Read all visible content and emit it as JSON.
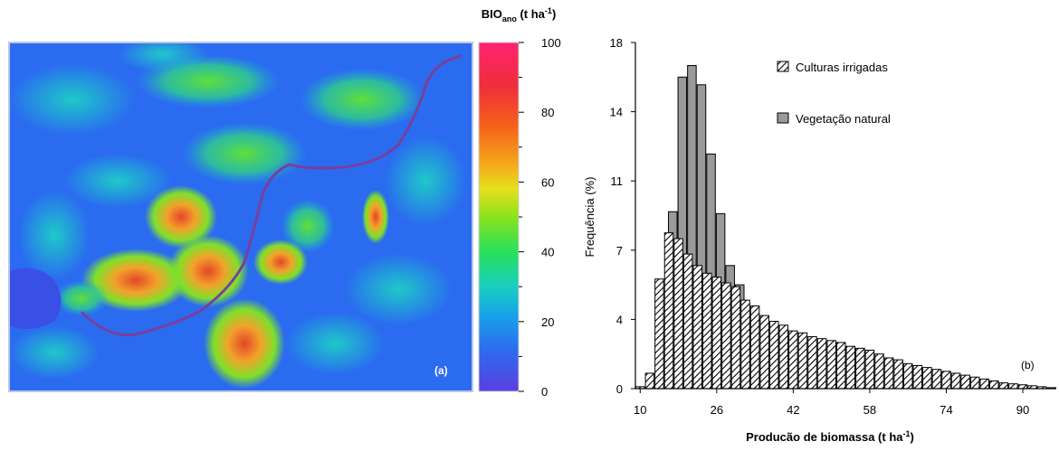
{
  "map_panel": {
    "panel_label": "(a)",
    "colorbar": {
      "title_main": "BIO",
      "title_sub": "ano",
      "title_units": " (t ha",
      "title_sup": "-1",
      "title_close": ")",
      "range": [
        0,
        100
      ],
      "ticks": [
        "0",
        "20",
        "40",
        "60",
        "80",
        "100"
      ]
    }
  },
  "chart_data": {
    "type": "bar",
    "panel_label": "(b)",
    "xlabel_main": "Producão de biomassa (t ha",
    "xlabel_sup": "-1",
    "xlabel_close": ")",
    "ylabel": "Frequência (%)",
    "x_ticks": [
      "10",
      "26",
      "42",
      "58",
      "74",
      "90"
    ],
    "y_ticks": [
      "0",
      "4",
      "7",
      "11",
      "14",
      "18"
    ],
    "ylim": [
      0,
      18
    ],
    "legend_position": "top-right",
    "series": [
      {
        "name": "Culturas irrigadas",
        "color": "#ffffff",
        "hatch": true,
        "x": [
          10,
          12,
          14,
          16,
          18,
          20,
          22,
          24,
          26,
          28,
          30,
          32,
          34,
          36,
          38,
          40,
          42,
          44,
          46,
          48,
          50,
          52,
          54,
          56,
          58,
          60,
          62,
          64,
          66,
          68,
          70,
          72,
          74,
          76,
          78,
          80,
          82,
          84,
          86,
          88,
          90,
          92,
          94,
          96
        ],
        "values": [
          0.1,
          0.8,
          5.7,
          8.1,
          7.8,
          7.0,
          6.4,
          6.0,
          5.8,
          5.5,
          5.3,
          4.6,
          4.3,
          3.8,
          3.5,
          3.3,
          3.0,
          2.9,
          2.7,
          2.6,
          2.5,
          2.4,
          2.2,
          2.1,
          2.0,
          1.8,
          1.6,
          1.5,
          1.3,
          1.2,
          1.1,
          1.0,
          0.9,
          0.8,
          0.7,
          0.6,
          0.5,
          0.4,
          0.3,
          0.25,
          0.2,
          0.15,
          0.1,
          0.05
        ]
      },
      {
        "name": "Vegetação natural",
        "color": "#9a9a9a",
        "hatch": false,
        "x": [
          14,
          16,
          18,
          20,
          22,
          24,
          26,
          28,
          30,
          32,
          34,
          36
        ],
        "values": [
          2.7,
          9.2,
          16.2,
          16.8,
          15.8,
          12.2,
          9.1,
          6.4,
          5.4,
          3.5,
          0.8,
          0.1
        ]
      }
    ]
  }
}
